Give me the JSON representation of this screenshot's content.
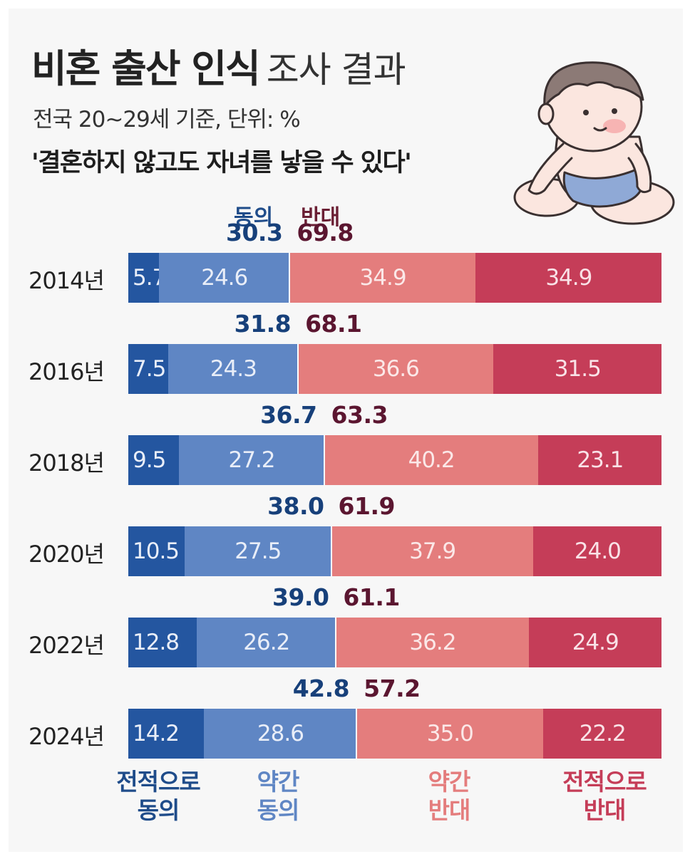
{
  "title_bold": "비혼 출산 인식",
  "title_light": "조사 결과",
  "subtitle": "전국 20~29세 기준, 단위: %",
  "question": "'결혼하지 않고도 자녀를 낳을 수 있다'",
  "header_agree": "동의",
  "header_oppose": "반대",
  "colors": {
    "strongly_agree": "#2456a0",
    "somewhat_agree": "#5f86c4",
    "somewhat_oppose": "#e47d7d",
    "strongly_oppose": "#c53d58",
    "agree_total": "#17407a",
    "oppose_total": "#5b1630"
  },
  "legend": {
    "strongly_agree": [
      "전적으로",
      "동의"
    ],
    "somewhat_agree": [
      "약간",
      "동의"
    ],
    "somewhat_oppose": [
      "약간",
      "반대"
    ],
    "strongly_oppose": [
      "전적으로",
      "반대"
    ]
  },
  "chart_data": {
    "type": "bar",
    "orientation": "horizontal-stacked",
    "categories": [
      "2014년",
      "2016년",
      "2018년",
      "2020년",
      "2022년",
      "2024년"
    ],
    "series": [
      {
        "name": "전적으로 동의",
        "values": [
          5.7,
          7.5,
          9.5,
          10.5,
          12.8,
          14.2
        ],
        "labels": [
          "5.7",
          "7.5",
          "9.5",
          "10.5",
          "12.8",
          "14.2"
        ]
      },
      {
        "name": "약간 동의",
        "values": [
          24.6,
          24.3,
          27.2,
          27.5,
          26.2,
          28.6
        ],
        "labels": [
          "24.6",
          "24.3",
          "27.2",
          "27.5",
          "26.2",
          "28.6"
        ]
      },
      {
        "name": "약간 반대",
        "values": [
          34.9,
          36.6,
          40.2,
          37.9,
          36.2,
          35.0
        ],
        "labels": [
          "34.9",
          "36.6",
          "40.2",
          "37.9",
          "36.2",
          "35.0"
        ]
      },
      {
        "name": "전적으로 반대",
        "values": [
          34.9,
          31.5,
          23.1,
          24.0,
          24.9,
          22.2
        ],
        "labels": [
          "34.9",
          "31.5",
          "23.1",
          "24.0",
          "24.9",
          "22.2"
        ]
      }
    ],
    "totals_agree": [
      "30.3",
      "31.8",
      "36.7",
      "38.0",
      "39.0",
      "42.8"
    ],
    "totals_oppose": [
      "69.8",
      "68.1",
      "63.3",
      "61.9",
      "61.1",
      "57.2"
    ]
  }
}
